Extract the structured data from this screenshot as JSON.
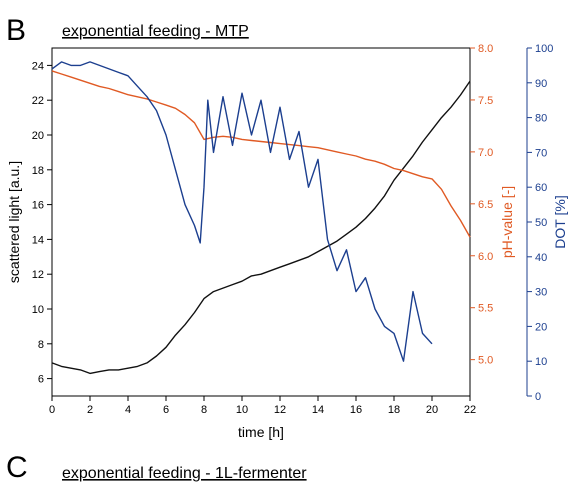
{
  "panels": [
    {
      "letter": "B",
      "title": "exponential feeding - MTP"
    },
    {
      "letter": "C",
      "title": "exponential feeding - 1L-fermenter"
    }
  ],
  "colors": {
    "scattered": "#111111",
    "ph": "#E05A24",
    "dot": "#1C3F8F"
  },
  "chart_data": {
    "type": "line",
    "x_axis": {
      "label": "time   [h]",
      "range": [
        0,
        22
      ],
      "ticks": [
        0,
        2,
        4,
        6,
        8,
        10,
        12,
        14,
        16,
        18,
        20,
        22
      ]
    },
    "y_axes": [
      {
        "id": "scattered",
        "side": "left",
        "label": "scattered light   [a.u.]",
        "range": [
          5,
          25
        ],
        "ticks": [
          6,
          8,
          10,
          12,
          14,
          16,
          18,
          20,
          22,
          24
        ],
        "color": "#111111"
      },
      {
        "id": "ph",
        "side": "right",
        "label": "pH-value  [-]",
        "range": [
          4.65,
          8.0
        ],
        "ticks": [
          5.0,
          5.5,
          6.0,
          6.5,
          7.0,
          7.5,
          8.0
        ],
        "color": "#E05A24"
      },
      {
        "id": "dot",
        "side": "right",
        "label": "DOT  [%]",
        "range": [
          0,
          100
        ],
        "ticks": [
          0,
          10,
          20,
          30,
          40,
          50,
          60,
          70,
          80,
          90,
          100
        ],
        "color": "#1C3F8F"
      }
    ],
    "series": [
      {
        "axis": "scattered",
        "color": "#111111",
        "x": [
          0,
          0.5,
          1,
          1.5,
          2,
          2.5,
          3,
          3.5,
          4,
          4.5,
          5,
          5.5,
          6,
          6.5,
          7,
          7.5,
          8,
          8.5,
          9,
          9.5,
          10,
          10.5,
          11,
          11.5,
          12,
          12.5,
          13,
          13.5,
          14,
          14.5,
          15,
          15.5,
          16,
          16.5,
          17,
          17.5,
          18,
          18.5,
          19,
          19.5,
          20,
          20.5,
          21,
          21.5,
          22
        ],
        "y": [
          6.9,
          6.7,
          6.6,
          6.5,
          6.3,
          6.4,
          6.5,
          6.5,
          6.6,
          6.7,
          6.9,
          7.3,
          7.8,
          8.5,
          9.1,
          9.8,
          10.6,
          11.0,
          11.2,
          11.4,
          11.6,
          11.9,
          12.0,
          12.2,
          12.4,
          12.6,
          12.8,
          13.0,
          13.3,
          13.6,
          13.9,
          14.3,
          14.7,
          15.2,
          15.8,
          16.5,
          17.4,
          18.1,
          18.8,
          19.6,
          20.3,
          21.0,
          21.6,
          22.3,
          23.1
        ]
      },
      {
        "axis": "ph",
        "color": "#E05A24",
        "x": [
          0,
          0.5,
          1,
          1.5,
          2,
          2.5,
          3,
          3.5,
          4,
          4.5,
          5,
          5.5,
          6,
          6.5,
          7,
          7.5,
          8,
          8.5,
          9,
          9.5,
          10,
          10.5,
          11,
          11.5,
          12,
          12.5,
          13,
          13.5,
          14,
          14.5,
          15,
          15.5,
          16,
          16.5,
          17,
          17.5,
          18,
          18.5,
          19,
          19.5,
          20,
          20.5,
          21,
          21.5,
          22
        ],
        "y": [
          7.78,
          7.75,
          7.72,
          7.69,
          7.66,
          7.63,
          7.61,
          7.58,
          7.55,
          7.53,
          7.51,
          7.48,
          7.45,
          7.42,
          7.36,
          7.28,
          7.12,
          7.14,
          7.15,
          7.14,
          7.12,
          7.11,
          7.1,
          7.09,
          7.08,
          7.07,
          7.06,
          7.05,
          7.04,
          7.02,
          7.0,
          6.98,
          6.96,
          6.93,
          6.91,
          6.88,
          6.84,
          6.82,
          6.79,
          6.76,
          6.74,
          6.64,
          6.48,
          6.34,
          6.18
        ]
      },
      {
        "axis": "dot",
        "color": "#1C3F8F",
        "x": [
          0,
          0.5,
          1,
          1.5,
          2,
          2.5,
          3,
          3.5,
          4,
          4.5,
          5,
          5.5,
          6,
          6.5,
          7,
          7.5,
          7.8,
          8.0,
          8.2,
          8.5,
          9,
          9.5,
          10,
          10.5,
          11,
          11.5,
          12,
          12.5,
          13,
          13.5,
          14,
          14.5,
          15,
          15.5,
          16,
          16.5,
          17,
          17.5,
          18,
          18.5,
          19,
          19.5,
          20
        ],
        "y": [
          94,
          96,
          95,
          95,
          96,
          95,
          94,
          93,
          92,
          89,
          86,
          82,
          75,
          65,
          55,
          49,
          44,
          60,
          85,
          70,
          86,
          72,
          87,
          75,
          85,
          70,
          83,
          68,
          76,
          60,
          68,
          45,
          36,
          42,
          30,
          34,
          25,
          20,
          18,
          10,
          30,
          18,
          15
        ]
      }
    ]
  }
}
